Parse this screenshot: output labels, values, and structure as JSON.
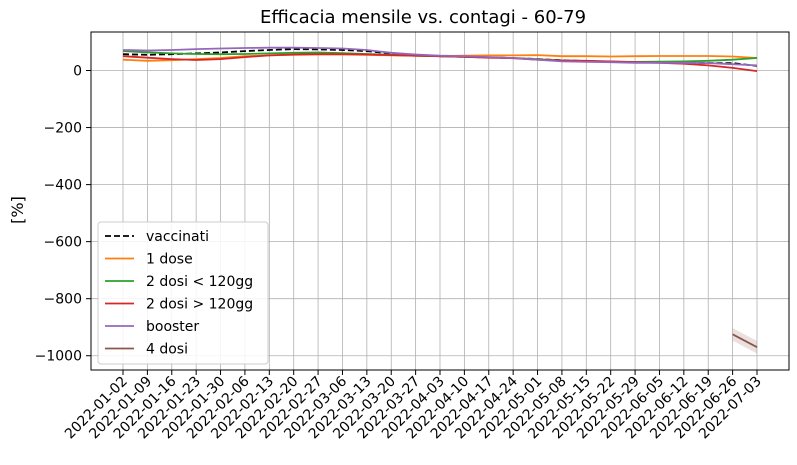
{
  "chart_data": {
    "type": "line",
    "title": "Efficacia mensile vs. contagi - 60-79",
    "xlabel": "",
    "ylabel": "[%]",
    "ylim": [
      -1050,
      135
    ],
    "yticks": [
      0,
      -200,
      -400,
      -600,
      -800,
      -1000
    ],
    "ytick_labels": [
      "0",
      "−200",
      "−400",
      "−600",
      "−800",
      "−1000"
    ],
    "grid": true,
    "legend_position": "lower-left",
    "x": [
      "2022-01-02",
      "2022-01-09",
      "2022-01-16",
      "2022-01-23",
      "2022-01-30",
      "2022-02-06",
      "2022-02-13",
      "2022-02-20",
      "2022-02-27",
      "2022-03-06",
      "2022-03-13",
      "2022-03-20",
      "2022-03-27",
      "2022-04-03",
      "2022-04-10",
      "2022-04-17",
      "2022-04-24",
      "2022-05-01",
      "2022-05-08",
      "2022-05-15",
      "2022-05-22",
      "2022-05-29",
      "2022-06-05",
      "2022-06-12",
      "2022-06-19",
      "2022-06-26",
      "2022-07-03"
    ],
    "series": [
      {
        "name": "vaccinati",
        "color": "#000000",
        "dashed": true,
        "values": [
          57,
          55,
          57,
          60,
          63,
          68,
          72,
          75,
          74,
          72,
          68,
          60,
          55,
          50,
          48,
          46,
          44,
          40,
          36,
          33,
          31,
          29,
          28,
          27,
          26,
          26,
          16
        ]
      },
      {
        "name": "1 dose",
        "color": "#ff7f0e",
        "dashed": false,
        "values": [
          38,
          34,
          36,
          40,
          44,
          50,
          53,
          55,
          56,
          56,
          55,
          53,
          52,
          51,
          52,
          53,
          53,
          54,
          50,
          50,
          49,
          50,
          51,
          51,
          51,
          49,
          44
        ]
      },
      {
        "name": "2 dosi < 120gg",
        "color": "#2ca02c",
        "dashed": false,
        "values": [
          68,
          64,
          60,
          58,
          57,
          58,
          60,
          62,
          63,
          61,
          58,
          55,
          52,
          50,
          48,
          46,
          44,
          40,
          35,
          33,
          31,
          30,
          31,
          32,
          34,
          38,
          44
        ]
      },
      {
        "name": "2 dosi > 120gg",
        "color": "#d62728",
        "dashed": false,
        "values": [
          50,
          45,
          40,
          37,
          40,
          47,
          53,
          56,
          57,
          57,
          56,
          54,
          52,
          50,
          48,
          45,
          43,
          38,
          35,
          34,
          32,
          29,
          27,
          24,
          18,
          9,
          -2
        ]
      },
      {
        "name": "booster",
        "color": "#9467bd",
        "dashed": false,
        "values": [
          72,
          70,
          72,
          75,
          77,
          79,
          80,
          80,
          79,
          77,
          72,
          62,
          56,
          52,
          50,
          47,
          44,
          38,
          32,
          30,
          29,
          27,
          27,
          27,
          26,
          22,
          18
        ]
      },
      {
        "name": "4 dosi",
        "color": "#8c564b",
        "dashed": false,
        "values": [
          null,
          null,
          null,
          null,
          null,
          null,
          null,
          null,
          null,
          null,
          null,
          null,
          null,
          null,
          null,
          null,
          null,
          null,
          null,
          null,
          null,
          null,
          null,
          null,
          null,
          -925,
          -970
        ]
      }
    ]
  }
}
